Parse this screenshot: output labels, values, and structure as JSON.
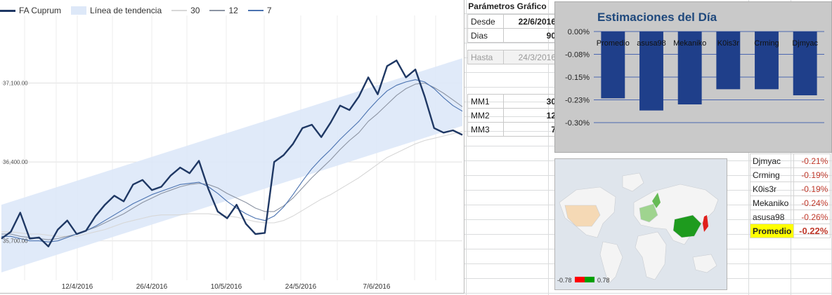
{
  "chart_data": [
    {
      "type": "line",
      "series": [
        {
          "name": "FA Cuprum",
          "color": "#1f3864",
          "values": [
            35720,
            35780,
            35950,
            35720,
            35730,
            35650,
            35800,
            35880,
            35760,
            35790,
            35920,
            36020,
            36100,
            36050,
            36200,
            36240,
            36150,
            36180,
            36280,
            36350,
            36300,
            36410,
            36160,
            35960,
            35900,
            36020,
            35850,
            35760,
            35770,
            36400,
            36460,
            36560,
            36700,
            36730,
            36620,
            36750,
            36900,
            36860,
            36980,
            37150,
            37000,
            37250,
            37300,
            37150,
            37220,
            36980,
            36700,
            36660,
            36680,
            36640
          ]
        },
        {
          "name": "30",
          "color": "#d7d7d7",
          "values": [
            35780,
            35780,
            35770,
            35760,
            35760,
            35750,
            35740,
            35740,
            35740,
            35760,
            35780,
            35800,
            35830,
            35860,
            35880,
            35900,
            35920,
            35930,
            35930,
            35930,
            35940,
            35940,
            35940,
            35930,
            35920,
            35910,
            35890,
            35870,
            35860,
            35860,
            35880,
            35920,
            35970,
            36020,
            36070,
            36110,
            36160,
            36210,
            36260,
            36320,
            36380,
            36440,
            36480,
            36520,
            36560,
            36590,
            36610,
            36630,
            36650,
            36670
          ]
        },
        {
          "name": "12",
          "color": "#8c94a3",
          "values": [
            35760,
            35760,
            35740,
            35730,
            35720,
            35710,
            35720,
            35740,
            35760,
            35790,
            35820,
            35860,
            35900,
            35940,
            35990,
            36040,
            36080,
            36120,
            36150,
            36180,
            36200,
            36210,
            36200,
            36170,
            36120,
            36080,
            36040,
            35990,
            35960,
            35960,
            36010,
            36080,
            36170,
            36260,
            36340,
            36420,
            36510,
            36590,
            36660,
            36760,
            36830,
            36910,
            36990,
            37050,
            37090,
            37100,
            37060,
            37010,
            36950,
            36890
          ]
        },
        {
          "name": "7",
          "color": "#4a72b0",
          "values": [
            35740,
            35740,
            35720,
            35700,
            35700,
            35690,
            35700,
            35730,
            35760,
            35790,
            35830,
            35880,
            35930,
            35980,
            36030,
            36070,
            36110,
            36140,
            36170,
            36200,
            36210,
            36220,
            36180,
            36120,
            36050,
            35990,
            35940,
            35900,
            35880,
            35920,
            36000,
            36110,
            36230,
            36340,
            36430,
            36510,
            36600,
            36680,
            36760,
            36860,
            36950,
            37030,
            37080,
            37110,
            37130,
            37110,
            37050,
            36970,
            36900,
            36850
          ]
        }
      ],
      "trend_band": {
        "name": "Línea de tendencia",
        "color": "#dde8f8",
        "start": 35720,
        "end": 37020,
        "half_width": 300
      },
      "x_tick_labels": [
        "12/4/2016",
        "26/4/2016",
        "10/5/2016",
        "24/5/2016",
        "7/6/2016"
      ],
      "y_tick_labels": [
        "37,100.00",
        "36,400.00",
        "35,700.00"
      ],
      "ylim": [
        35350,
        37650
      ],
      "title": "",
      "xlabel": "",
      "ylabel": ""
    },
    {
      "type": "bar",
      "title": "Estimaciones del Día",
      "categories": [
        "Promedio",
        "asusa98",
        "Mekaniko",
        "K0is3r",
        "Crming",
        "Djmyac"
      ],
      "values": [
        -0.22,
        -0.26,
        -0.24,
        -0.19,
        -0.19,
        -0.21
      ],
      "y_tick_labels": [
        "0.00%",
        "-0.08%",
        "-0.15%",
        "-0.23%",
        "-0.30%"
      ],
      "ylim": [
        -0.3,
        0.0
      ],
      "bar_color": "#1f3f8a",
      "grid": true
    }
  ],
  "params": {
    "title": "Parámetros Gráfico",
    "desde_label": "Desde",
    "desde_value": "22/6/2016",
    "dias_label": "Dias",
    "dias_value": "90",
    "hasta_label": "Hasta",
    "hasta_value": "24/3/2016",
    "mm1_label": "MM1",
    "mm1_value": "30",
    "mm2_label": "MM2",
    "mm2_value": "12",
    "mm3_label": "MM3",
    "mm3_value": "7"
  },
  "estimates_table": [
    {
      "name": "Djmyac",
      "value": "-0.21%"
    },
    {
      "name": "Crming",
      "value": "-0.19%"
    },
    {
      "name": "K0is3r",
      "value": "-0.19%"
    },
    {
      "name": "Mekaniko",
      "value": "-0.24%"
    },
    {
      "name": "asusa98",
      "value": "-0.26%"
    }
  ],
  "average": {
    "label": "Promedio",
    "value": "-0.22%"
  },
  "map": {
    "scale_min": "-0.78",
    "scale_max": "0.78",
    "low_color": "#ff0000",
    "high_color": "#00a000"
  }
}
